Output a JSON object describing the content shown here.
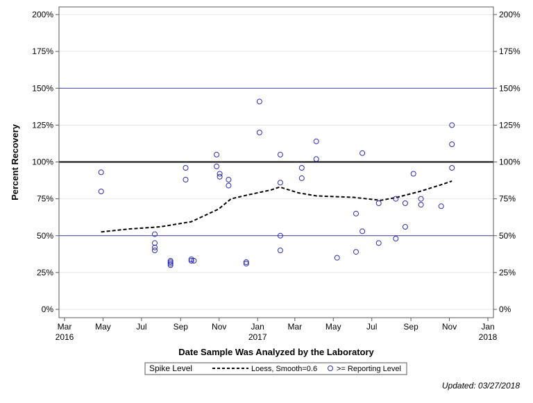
{
  "chart_data": {
    "type": "scatter",
    "title": "",
    "xlabel": "Date Sample Was Analyzed by the Laboratory",
    "ylabel": "Percent Recovery",
    "xlim": [
      "2016-03-01",
      "2018-01-01"
    ],
    "ylim": [
      0,
      200
    ],
    "x_ticks": [
      {
        "date": "2016-03-01",
        "label": "Mar",
        "year": "2016"
      },
      {
        "date": "2016-05-01",
        "label": "May",
        "year": ""
      },
      {
        "date": "2016-07-01",
        "label": "Jul",
        "year": ""
      },
      {
        "date": "2016-09-01",
        "label": "Sep",
        "year": ""
      },
      {
        "date": "2016-11-01",
        "label": "Nov",
        "year": ""
      },
      {
        "date": "2017-01-01",
        "label": "Jan",
        "year": "2017"
      },
      {
        "date": "2017-03-01",
        "label": "Mar",
        "year": ""
      },
      {
        "date": "2017-05-01",
        "label": "May",
        "year": ""
      },
      {
        "date": "2017-07-01",
        "label": "Jul",
        "year": ""
      },
      {
        "date": "2017-09-01",
        "label": "Sep",
        "year": ""
      },
      {
        "date": "2017-11-01",
        "label": "Nov",
        "year": ""
      },
      {
        "date": "2018-01-01",
        "label": "Jan",
        "year": "2018"
      }
    ],
    "y_ticks": [
      {
        "value": 0,
        "label": "0%"
      },
      {
        "value": 25,
        "label": "25%"
      },
      {
        "value": 50,
        "label": "50%"
      },
      {
        "value": 75,
        "label": "75%"
      },
      {
        "value": 100,
        "label": "100%"
      },
      {
        "value": 125,
        "label": "125%"
      },
      {
        "value": 150,
        "label": "150%"
      },
      {
        "value": 175,
        "label": "175%"
      },
      {
        "value": 200,
        "label": "200%"
      }
    ],
    "reference_lines": [
      {
        "value": 150,
        "color": "#3c3c9c",
        "width": 1
      },
      {
        "value": 100,
        "color": "#000000",
        "width": 2
      },
      {
        "value": 50,
        "color": "#3c3c9c",
        "width": 1
      }
    ],
    "grid": true,
    "legend_position": "bottom",
    "series": [
      {
        "name": ">= Reporting Level",
        "kind": "scatter",
        "marker": "open-circle",
        "color": "#2b2bb8",
        "points": [
          [
            "2016-04-28",
            93
          ],
          [
            "2016-04-28",
            80
          ],
          [
            "2016-07-22",
            51
          ],
          [
            "2016-07-22",
            45
          ],
          [
            "2016-07-22",
            42
          ],
          [
            "2016-07-22",
            40
          ],
          [
            "2016-08-16",
            33
          ],
          [
            "2016-08-16",
            32
          ],
          [
            "2016-08-16",
            31
          ],
          [
            "2016-08-16",
            30
          ],
          [
            "2016-09-09",
            96
          ],
          [
            "2016-09-09",
            88
          ],
          [
            "2016-09-18",
            34
          ],
          [
            "2016-09-18",
            33
          ],
          [
            "2016-09-22",
            33
          ],
          [
            "2016-10-28",
            105
          ],
          [
            "2016-10-28",
            97
          ],
          [
            "2016-11-02",
            92
          ],
          [
            "2016-11-02",
            90
          ],
          [
            "2016-11-16",
            88
          ],
          [
            "2016-11-16",
            84
          ],
          [
            "2016-12-14",
            32
          ],
          [
            "2016-12-14",
            31
          ],
          [
            "2017-01-04",
            141
          ],
          [
            "2017-01-04",
            120
          ],
          [
            "2017-02-06",
            105
          ],
          [
            "2017-02-06",
            86
          ],
          [
            "2017-02-06",
            50
          ],
          [
            "2017-02-06",
            40
          ],
          [
            "2017-03-12",
            96
          ],
          [
            "2017-03-12",
            89
          ],
          [
            "2017-04-04",
            114
          ],
          [
            "2017-04-04",
            102
          ],
          [
            "2017-05-07",
            35
          ],
          [
            "2017-06-06",
            65
          ],
          [
            "2017-06-06",
            39
          ],
          [
            "2017-06-16",
            106
          ],
          [
            "2017-06-16",
            53
          ],
          [
            "2017-07-12",
            72
          ],
          [
            "2017-07-12",
            45
          ],
          [
            "2017-08-08",
            75
          ],
          [
            "2017-08-08",
            48
          ],
          [
            "2017-08-23",
            72
          ],
          [
            "2017-08-23",
            56
          ],
          [
            "2017-09-05",
            92
          ],
          [
            "2017-09-17",
            75
          ],
          [
            "2017-09-17",
            71
          ],
          [
            "2017-10-19",
            70
          ],
          [
            "2017-11-05",
            125
          ],
          [
            "2017-11-05",
            112
          ],
          [
            "2017-11-05",
            96
          ]
        ]
      },
      {
        "name": "Loess, Smooth=0.6",
        "kind": "line",
        "dash": "dashed",
        "color": "#000000",
        "points": [
          [
            "2016-04-28",
            52.5
          ],
          [
            "2016-06-10",
            54.5
          ],
          [
            "2016-07-31",
            56
          ],
          [
            "2016-09-18",
            59.5
          ],
          [
            "2016-10-31",
            68
          ],
          [
            "2016-11-20",
            75
          ],
          [
            "2016-12-20",
            78
          ],
          [
            "2017-01-22",
            81
          ],
          [
            "2017-02-05",
            83
          ],
          [
            "2017-03-07",
            79
          ],
          [
            "2017-04-04",
            77
          ],
          [
            "2017-06-02",
            76
          ],
          [
            "2017-07-15",
            74
          ],
          [
            "2017-08-10",
            76
          ],
          [
            "2017-09-15",
            80
          ],
          [
            "2017-10-15",
            84
          ],
          [
            "2017-11-05",
            87
          ]
        ]
      }
    ]
  },
  "legend": {
    "title": "Spike Level",
    "items": [
      {
        "label": "Loess, Smooth=0.6",
        "symbol": "dashed-line"
      },
      {
        "label": ">= Reporting Level",
        "symbol": "open-circle"
      }
    ]
  },
  "footer": {
    "updated": "Updated: 03/27/2018"
  }
}
